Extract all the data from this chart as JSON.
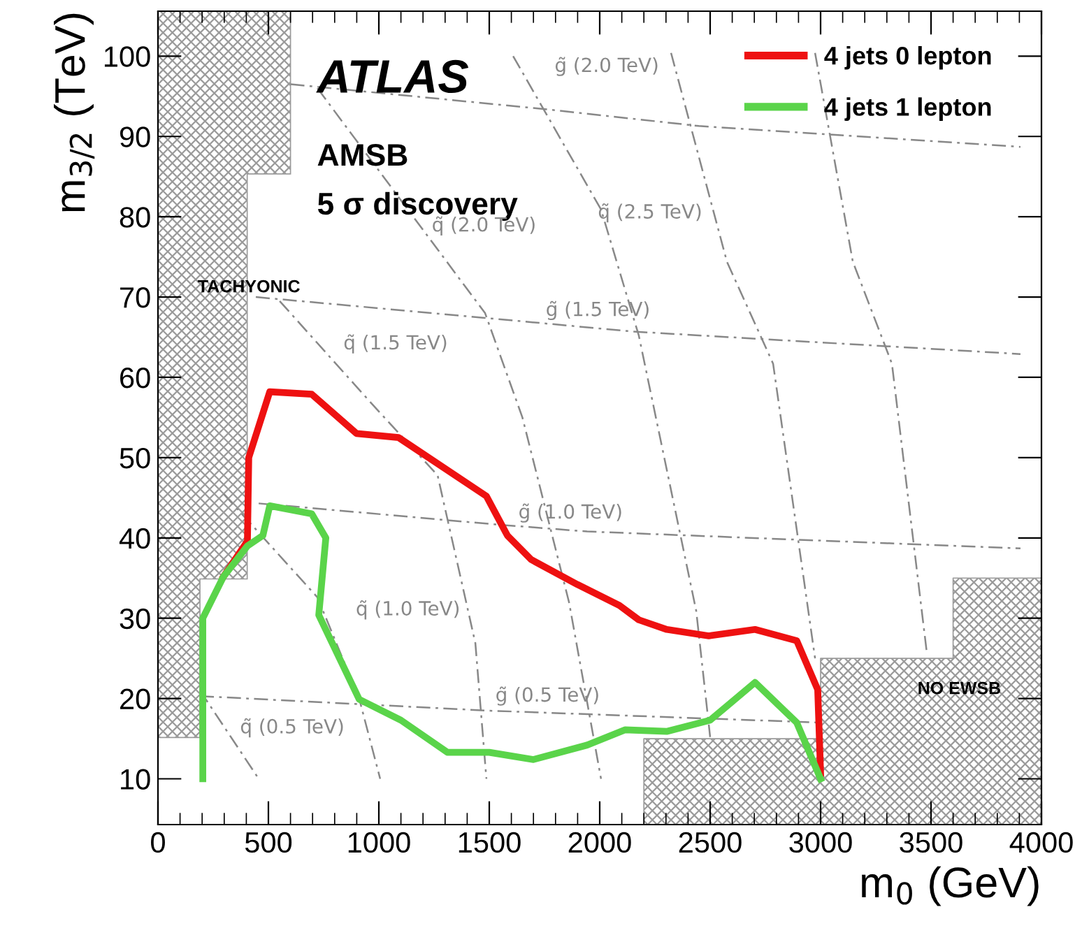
{
  "chart_data": {
    "type": "line",
    "title": "ATLAS",
    "xlabel": "m$_{0}$ (GeV)",
    "ylabel": "m$_{3/2}$ (TeV)",
    "xlim": [
      0,
      4000
    ],
    "ylim": [
      4.3,
      105.6
    ],
    "xticks": [
      0,
      500,
      1000,
      1500,
      2000,
      2500,
      3000,
      3500,
      4000
    ],
    "yticks": [
      10,
      20,
      30,
      40,
      50,
      60,
      70,
      80,
      90,
      100
    ],
    "grid": false,
    "legend": "top right",
    "series": [
      {
        "type": "area",
        "color": "#9a9a9a",
        "x": [
          2200,
          3000,
          3000,
          3600,
          3600,
          4000
        ],
        "values": [
          15,
          15,
          25,
          25,
          35,
          35
        ]
      },
      {
        "color": "#888888",
        "line_style": "dashed",
        "x": [
          600,
          1753,
          2449,
          3905
        ],
        "values": [
          96.5,
          93.4,
          91.3,
          88.7
        ]
      },
      {
        "color": "#888888",
        "line_style": "dashed",
        "x": [
          443,
          1481,
          2152,
          3905
        ],
        "values": [
          70,
          67.4,
          65.7,
          62.9
        ]
      },
      {
        "color": "#888888",
        "line_style": "dashed",
        "x": [
          456,
          1519,
          1943,
          3905
        ],
        "values": [
          44.3,
          41.7,
          40.8,
          38.7
        ]
      },
      {
        "color": "#888888",
        "line_style": "dashed",
        "x": [
          190,
          1487,
          3000
        ],
        "values": [
          20.3,
          18.5,
          17
        ]
      },
      {
        "color": "#888888",
        "line_style": "dashed",
        "x": [
          190,
          456
        ],
        "values": [
          21,
          10
        ]
      },
      {
        "color": "#888888",
        "line_style": "dashed",
        "x": [
          297,
          722,
          911,
          1006
        ],
        "values": [
          45.5,
          32.6,
          20,
          10
        ]
      },
      {
        "color": "#888888",
        "line_style": "dashed",
        "x": [
          551,
          975,
          1266,
          1437,
          1487
        ],
        "values": [
          69.5,
          56.5,
          47.8,
          26.9,
          10
        ]
      },
      {
        "color": "#888888",
        "line_style": "dashed",
        "x": [
          722,
          1481,
          1650,
          1861,
          2006
        ],
        "values": [
          96,
          68,
          55,
          32,
          10
        ]
      },
      {
        "color": "#888888",
        "line_style": "dashed",
        "x": [
          1608,
          2006,
          2177,
          2437,
          2500
        ],
        "values": [
          100,
          80.9,
          65.2,
          30.9,
          15.2
        ]
      },
      {
        "color": "#888888",
        "line_style": "dashed",
        "x": [
          2323,
          2576,
          2785,
          2975
        ],
        "values": [
          100.4,
          74.4,
          61.7,
          25
        ]
      },
      {
        "color": "#888888",
        "line_style": "dashed",
        "x": [
          2975,
          3146,
          3323,
          3481
        ],
        "values": [
          100.4,
          74.4,
          61.7,
          25.7
        ]
      },
      {
        "name": "4 jets 0 lepton",
        "color": "#ee1111",
        "line_style": "solid",
        "x": [
          297,
          405,
          411,
          506,
          696,
          899,
          1089,
          1487,
          1582,
          1690,
          1899,
          2089,
          2177,
          2304,
          2494,
          2703,
          2892,
          2987,
          3000
        ],
        "values": [
          35.2,
          39.6,
          50,
          58.2,
          57.9,
          53,
          52.5,
          45.2,
          40.3,
          37.3,
          34.2,
          31.6,
          29.8,
          28.6,
          27.8,
          28.6,
          27.2,
          21.1,
          10.7
        ]
      },
      {
        "name": "4 jets 1 lepton",
        "color": "#5ad44a",
        "line_style": "solid",
        "x": [
          203,
          203,
          297,
          405,
          475,
          506,
          696,
          760,
          728,
          911,
          1100,
          1310,
          1500,
          1700,
          1943,
          2114,
          2303,
          2500,
          2703,
          2892,
          3000
        ],
        "values": [
          10,
          30,
          35.2,
          39,
          40.3,
          44,
          43,
          40,
          30.4,
          19.9,
          17.3,
          13.3,
          13.3,
          12.4,
          14.2,
          16.1,
          15.9,
          17.3,
          22,
          17,
          10
        ]
      }
    ],
    "annotations": [
      "AMSB",
      "5 σ discovery",
      "TACHYONIC",
      "NO EWSB",
      "g̃ (2.0 TeV)",
      "q̃ (2.0 TeV)",
      "q̃ (2.5 TeV)",
      "g̃ (1.5 TeV)",
      "q̃ (1.5 TeV)",
      "g̃ (1.0 TeV)",
      "q̃ (1.0 TeV)",
      "g̃ (0.5 TeV)",
      "q̃ (0.5 TeV)"
    ]
  }
}
